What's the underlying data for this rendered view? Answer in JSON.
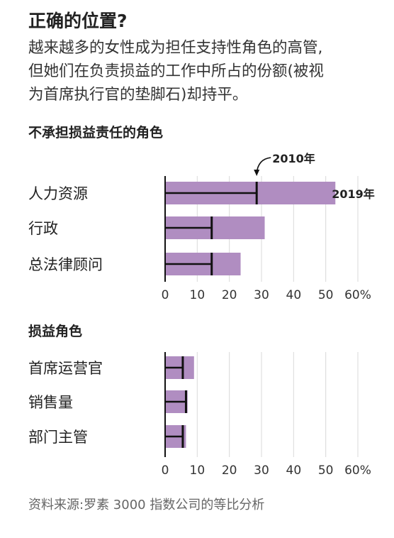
{
  "title": "正确的位置?",
  "subtitle_lines": [
    "越来越多的女性成为担任支持性角色的高管,",
    "但她们在负责损益的工作中所占的份额(被视",
    "为首席执行官的垫脚石)却持平。"
  ],
  "source": "资料来源:罗素 3000 指数公司的等比分析",
  "colors": {
    "bar": "#b08dc1",
    "marker": "#111111",
    "grid": "#d9d9d9",
    "text": "#222222"
  },
  "chart_data": [
    {
      "type": "bar",
      "orientation": "horizontal",
      "title": "不承担损益责任的角色",
      "categories": [
        "人力资源",
        "行政",
        "总法律顾问"
      ],
      "series": [
        {
          "name": "2019年",
          "values": [
            53,
            31,
            23.5
          ]
        },
        {
          "name": "2010年",
          "values": [
            28.5,
            14.5,
            14.5
          ]
        }
      ],
      "xlim": [
        0,
        60
      ],
      "xticks": [
        "0",
        "10",
        "20",
        "30",
        "40",
        "50",
        "60%"
      ],
      "grid": true,
      "annotations": {
        "marker_label": "2010年",
        "bar_label": "2019年"
      }
    },
    {
      "type": "bar",
      "orientation": "horizontal",
      "title": "损益角色",
      "categories": [
        "首席运营官",
        "销售量",
        "部门主管"
      ],
      "series": [
        {
          "name": "2019年",
          "values": [
            9,
            7,
            6.5
          ]
        },
        {
          "name": "2010年",
          "values": [
            5.5,
            6.5,
            5.5
          ]
        }
      ],
      "xlim": [
        0,
        60
      ],
      "xticks": [
        "0",
        "10",
        "20",
        "30",
        "40",
        "50",
        "60%"
      ],
      "grid": true
    }
  ]
}
